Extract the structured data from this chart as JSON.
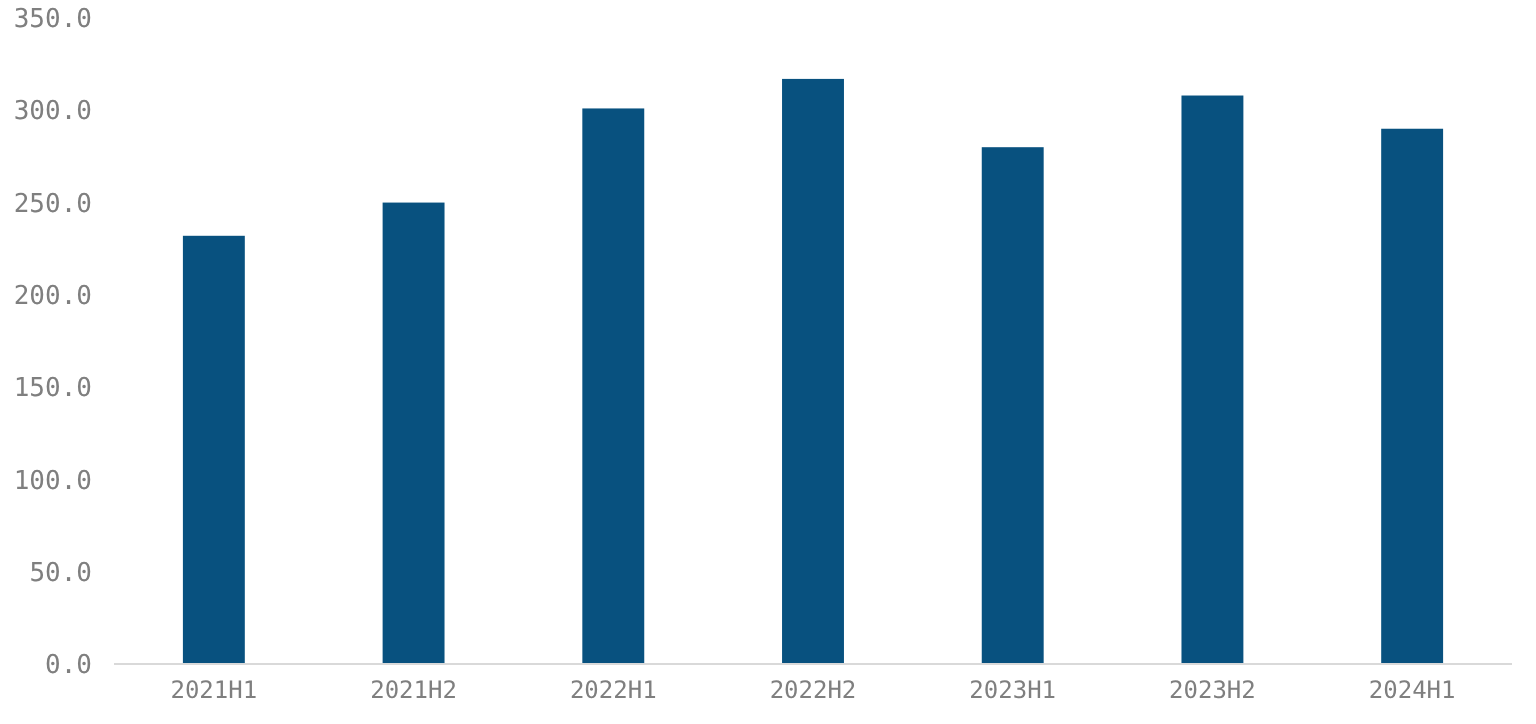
{
  "chart_data": {
    "type": "bar",
    "categories": [
      "2021H1",
      "2021H2",
      "2022H1",
      "2022H2",
      "2023H1",
      "2023H2",
      "2024H1"
    ],
    "values": [
      232,
      250,
      301,
      317,
      280,
      308,
      290
    ],
    "color": "#08517f",
    "ylim": [
      0,
      350
    ],
    "yticks": [
      {
        "value": 0,
        "label": "0.0"
      },
      {
        "value": 50,
        "label": "50.0"
      },
      {
        "value": 100,
        "label": "100.0"
      },
      {
        "value": 150,
        "label": "150.0"
      },
      {
        "value": 200,
        "label": "200.0"
      },
      {
        "value": 250,
        "label": "250.0"
      },
      {
        "value": 300,
        "label": "300.0"
      },
      {
        "value": 350,
        "label": "350.0"
      }
    ],
    "grid": false
  }
}
